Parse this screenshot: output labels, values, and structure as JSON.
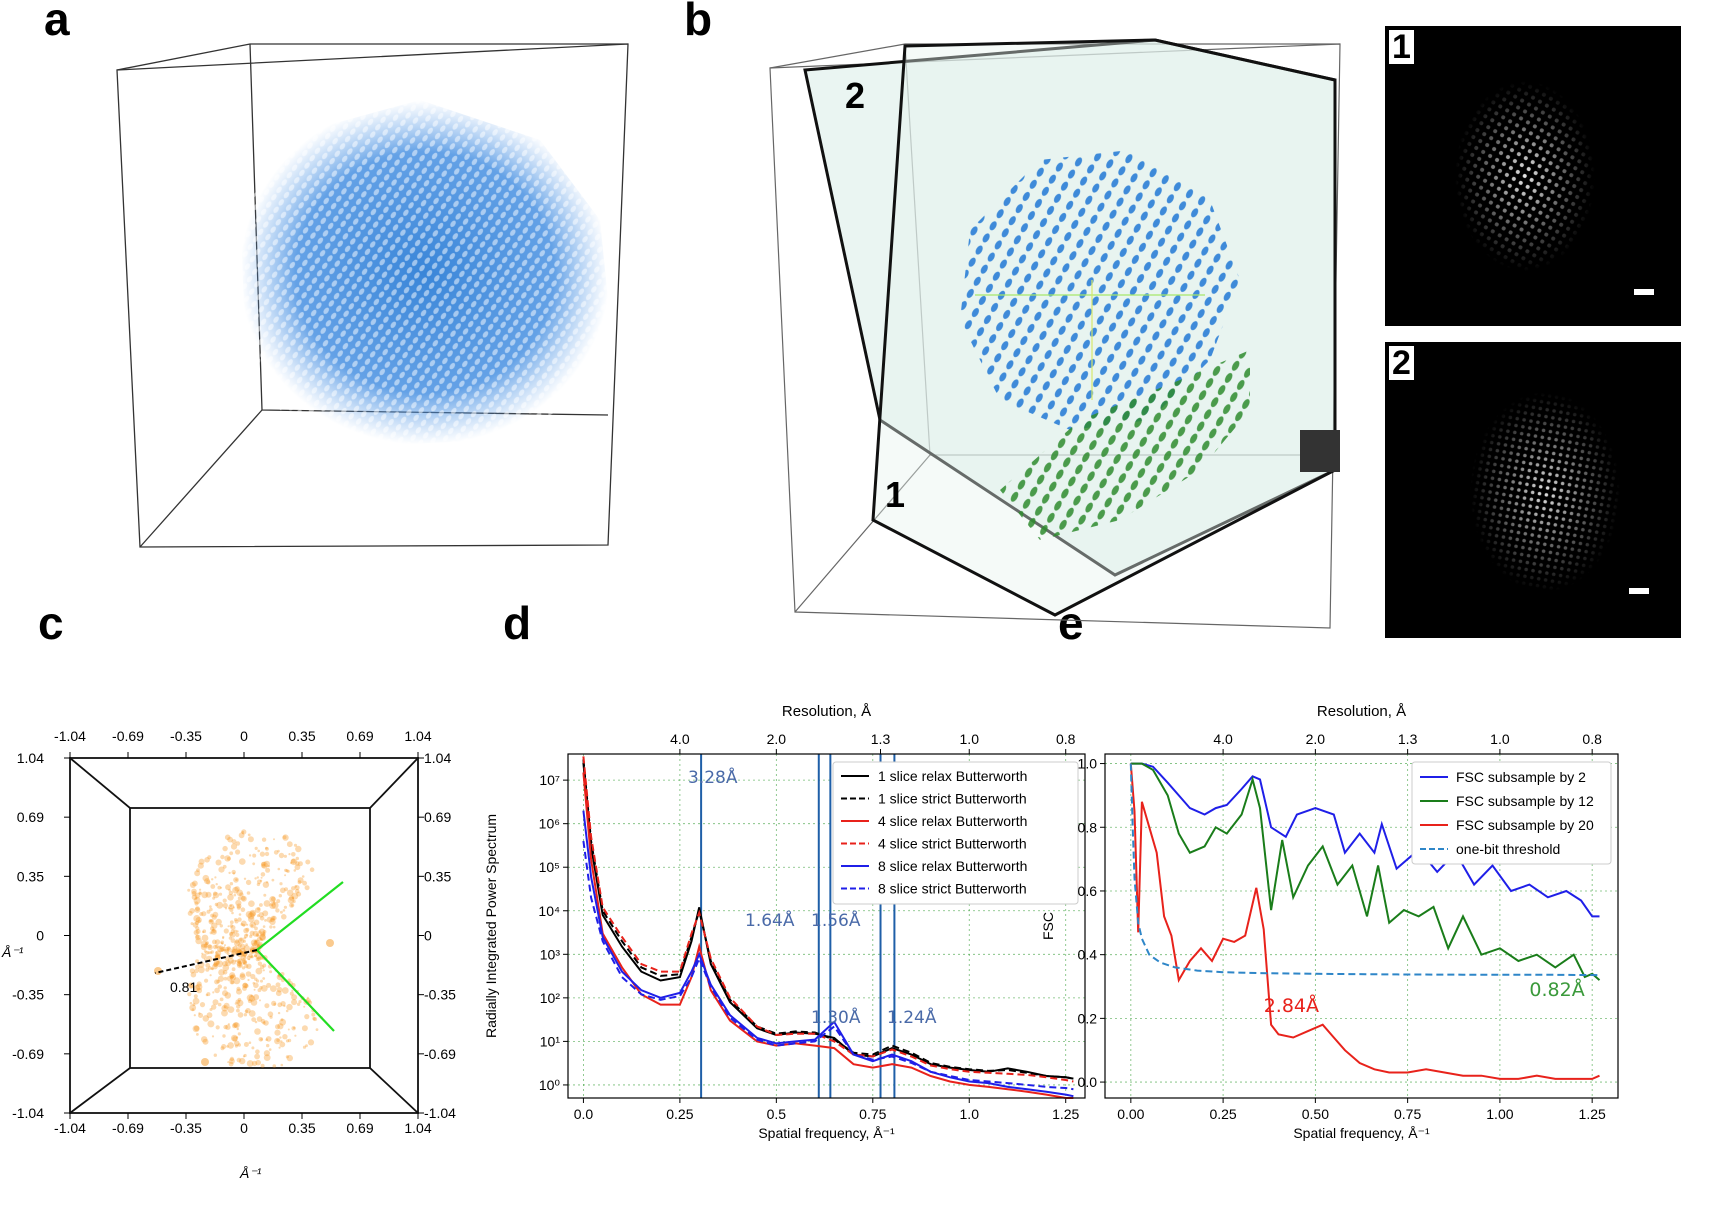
{
  "panels": {
    "a": {
      "letter": "a"
    },
    "b": {
      "letter": "b",
      "plane_labels": [
        "2",
        "1"
      ],
      "insets": [
        {
          "label": "1"
        },
        {
          "label": "2"
        }
      ]
    },
    "c": {
      "letter": "c",
      "ticks": [
        "-1.04",
        "-0.69",
        "-0.35",
        "0",
        "0.35",
        "0.69",
        "1.04"
      ],
      "x_unit": "Å⁻¹",
      "y_unit": "Å⁻¹",
      "annotation": "0.81",
      "colors": {
        "points": "#f5961e",
        "wedge": "#22dd22"
      }
    },
    "d": {
      "letter": "d"
    },
    "e": {
      "letter": "e"
    }
  },
  "chart_data": [
    {
      "id": "d",
      "type": "line",
      "title": "",
      "xlabel": "Spatial frequency, Å⁻¹",
      "ylabel": "Radially Integrated Power Spectrum",
      "top_axis_label": "Resolution, Å",
      "top_ticks": [
        {
          "value": "4.0",
          "x": 0.25
        },
        {
          "value": "2.0",
          "x": 0.5
        },
        {
          "value": "1.3",
          "x": 0.77
        },
        {
          "value": "1.0",
          "x": 1.0
        },
        {
          "value": "0.8",
          "x": 1.25
        }
      ],
      "xlim": [
        -0.04,
        1.3
      ],
      "ylim_log10": [
        -0.3,
        7.6
      ],
      "yscale": "log",
      "xticks": [
        "0.0",
        "0.25",
        "0.5",
        "0.75",
        "1.0",
        "1.25"
      ],
      "yticks": [
        "10⁰",
        "10¹",
        "10²",
        "10³",
        "10⁴",
        "10⁵",
        "10⁶",
        "10⁷"
      ],
      "grid": true,
      "legend_position": "top-right",
      "vlines": [
        {
          "x": 0.305,
          "label": "3.28Å"
        },
        {
          "x": 0.61,
          "label": "1.64Å"
        },
        {
          "x": 0.64,
          "label": "1.56Å"
        },
        {
          "x": 0.77,
          "label": "1.30Å"
        },
        {
          "x": 0.806,
          "label": "1.24Å"
        }
      ],
      "series": [
        {
          "name": "1 slice relax Butterworth",
          "color": "#000000",
          "dash": false,
          "x": [
            0.0,
            0.02,
            0.05,
            0.1,
            0.15,
            0.2,
            0.25,
            0.28,
            0.3,
            0.33,
            0.38,
            0.45,
            0.5,
            0.55,
            0.6,
            0.65,
            0.7,
            0.75,
            0.8,
            0.85,
            0.9,
            0.95,
            1.0,
            1.05,
            1.1,
            1.15,
            1.2,
            1.25,
            1.27
          ],
          "y": [
            25000000.0,
            300000.0,
            8000.0,
            1500.0,
            400.0,
            250.0,
            300.0,
            2000.0,
            12000.0,
            600.0,
            80.0,
            20.0,
            14.0,
            16.0,
            15.0,
            12.0,
            5,
            4.5,
            7,
            5,
            3,
            2.5,
            2.2,
            2,
            2.4,
            2,
            1.6,
            1.5,
            1.4
          ]
        },
        {
          "name": "1 slice strict Butterworth",
          "color": "#000000",
          "dash": true,
          "x": [
            0.0,
            0.02,
            0.05,
            0.1,
            0.15,
            0.2,
            0.25,
            0.28,
            0.3,
            0.33,
            0.38,
            0.45,
            0.5,
            0.55,
            0.6,
            0.65,
            0.7,
            0.75,
            0.8,
            0.85,
            0.9,
            0.95,
            1.0,
            1.05,
            1.1,
            1.15,
            1.2,
            1.25,
            1.27
          ],
          "y": [
            30000000.0,
            400000.0,
            10000.0,
            2000.0,
            500.0,
            320.0,
            350.0,
            2500.0,
            10000.0,
            700.0,
            90.0,
            22.0,
            15.0,
            17.0,
            16.0,
            11.0,
            5.5,
            5,
            8,
            5.5,
            3.2,
            2.6,
            2.3,
            2.1,
            2.2,
            1.9,
            1.6,
            1.5,
            1.4
          ]
        },
        {
          "name": "4 slice relax Butterworth",
          "color": "#e8221b",
          "dash": false,
          "x": [
            0.0,
            0.02,
            0.05,
            0.1,
            0.15,
            0.2,
            0.25,
            0.28,
            0.3,
            0.33,
            0.38,
            0.45,
            0.5,
            0.55,
            0.6,
            0.65,
            0.7,
            0.75,
            0.8,
            0.85,
            0.9,
            0.95,
            1.0,
            1.05,
            1.1,
            1.15,
            1.2,
            1.25,
            1.27
          ],
          "y": [
            15000000.0,
            150000.0,
            3000.0,
            500.0,
            120.0,
            70.0,
            70.0,
            300.0,
            1500.0,
            150.0,
            30.0,
            10.0,
            8,
            9,
            8,
            7,
            3,
            2.5,
            3,
            2.5,
            1.6,
            1.2,
            1,
            0.9,
            0.8,
            0.7,
            0.6,
            0.5,
            0.5
          ]
        },
        {
          "name": "4 slice strict Butterworth",
          "color": "#e8221b",
          "dash": true,
          "x": [
            0.0,
            0.02,
            0.05,
            0.1,
            0.15,
            0.2,
            0.25,
            0.28,
            0.3,
            0.33,
            0.38,
            0.45,
            0.5,
            0.55,
            0.6,
            0.65,
            0.7,
            0.75,
            0.8,
            0.85,
            0.9,
            0.95,
            1.0,
            1.05,
            1.1,
            1.15,
            1.2,
            1.25,
            1.27
          ],
          "y": [
            35000000.0,
            500000.0,
            12000.0,
            2500.0,
            600.0,
            400.0,
            400.0,
            3000.0,
            9000.0,
            800.0,
            100.0,
            22.0,
            14.0,
            15.0,
            15.0,
            10.0,
            5,
            4.5,
            6.5,
            4.5,
            2.8,
            2.3,
            2,
            1.9,
            1.8,
            1.7,
            1.5,
            1.3,
            1.2
          ]
        },
        {
          "name": "8 slice relax Butterworth",
          "color": "#1f1fe8",
          "dash": false,
          "x": [
            0.0,
            0.02,
            0.05,
            0.1,
            0.15,
            0.2,
            0.25,
            0.28,
            0.3,
            0.33,
            0.38,
            0.45,
            0.5,
            0.55,
            0.6,
            0.65,
            0.7,
            0.75,
            0.8,
            0.85,
            0.9,
            0.95,
            1.0,
            1.05,
            1.1,
            1.15,
            1.2,
            1.25,
            1.27
          ],
          "y": [
            2000000.0,
            60000.0,
            2500.0,
            400.0,
            150.0,
            100.0,
            130.0,
            400.0,
            1000.0,
            200.0,
            40.0,
            12.0,
            9,
            10.0,
            11.0,
            28.0,
            5,
            3.5,
            5,
            3.5,
            2,
            1.5,
            1.2,
            1.1,
            0.9,
            0.8,
            0.7,
            0.6,
            0.55
          ]
        },
        {
          "name": "8 slice strict Butterworth",
          "color": "#1f1fe8",
          "dash": true,
          "x": [
            0.0,
            0.02,
            0.05,
            0.1,
            0.15,
            0.2,
            0.25,
            0.28,
            0.3,
            0.33,
            0.38,
            0.45,
            0.5,
            0.55,
            0.6,
            0.65,
            0.7,
            0.75,
            0.8,
            0.85,
            0.9,
            0.95,
            1.0,
            1.05,
            1.1,
            1.15,
            1.2,
            1.25,
            1.27
          ],
          "y": [
            400000.0,
            20000.0,
            2000.0,
            300.0,
            120.0,
            90.0,
            110.0,
            300.0,
            800.0,
            180.0,
            35.0,
            11.0,
            8,
            9,
            10.0,
            22.0,
            5,
            3.8,
            4.5,
            3.2,
            2,
            1.6,
            1.3,
            1.2,
            1.1,
            1,
            0.9,
            0.85,
            0.8
          ]
        }
      ]
    },
    {
      "id": "e",
      "type": "line",
      "title": "",
      "xlabel": "Spatial frequency, Å⁻¹",
      "ylabel": "FSC",
      "top_axis_label": "Resolution, Å",
      "top_ticks": [
        {
          "value": "4.0",
          "x": 0.25
        },
        {
          "value": "2.0",
          "x": 0.5
        },
        {
          "value": "1.3",
          "x": 0.75
        },
        {
          "value": "1.0",
          "x": 1.0
        },
        {
          "value": "0.8",
          "x": 1.25
        }
      ],
      "xlim": [
        -0.07,
        1.32
      ],
      "ylim": [
        -0.05,
        1.03
      ],
      "xticks": [
        "0.00",
        "0.25",
        "0.50",
        "0.75",
        "1.00",
        "1.25"
      ],
      "yticks": [
        "0.0",
        "0.2",
        "0.4",
        "0.6",
        "0.8",
        "1.0"
      ],
      "grid": true,
      "legend_position": "top-right",
      "annotations": [
        {
          "text": "2.84Å",
          "x": 0.36,
          "y": 0.22,
          "color": "#e8221b"
        },
        {
          "text": "0.82Å",
          "x": 1.08,
          "y": 0.27,
          "color": "#3b9a3b"
        }
      ],
      "series": [
        {
          "name": "FSC subsample by 2",
          "color": "#1f1fe8",
          "dash": false,
          "x": [
            0.0,
            0.03,
            0.06,
            0.1,
            0.13,
            0.16,
            0.2,
            0.23,
            0.26,
            0.3,
            0.33,
            0.35,
            0.38,
            0.42,
            0.45,
            0.5,
            0.55,
            0.58,
            0.62,
            0.66,
            0.68,
            0.72,
            0.78,
            0.83,
            0.88,
            0.93,
            0.98,
            1.03,
            1.08,
            1.13,
            1.18,
            1.22,
            1.25,
            1.27
          ],
          "y": [
            1.0,
            1.0,
            0.99,
            0.94,
            0.9,
            0.86,
            0.84,
            0.86,
            0.87,
            0.92,
            0.96,
            0.95,
            0.8,
            0.77,
            0.84,
            0.86,
            0.84,
            0.72,
            0.78,
            0.72,
            0.81,
            0.67,
            0.73,
            0.66,
            0.72,
            0.62,
            0.68,
            0.6,
            0.62,
            0.58,
            0.6,
            0.57,
            0.52,
            0.52
          ]
        },
        {
          "name": "FSC subsample by 12",
          "color": "#1a7d1a",
          "dash": false,
          "x": [
            0.0,
            0.03,
            0.06,
            0.1,
            0.13,
            0.16,
            0.2,
            0.23,
            0.26,
            0.3,
            0.33,
            0.35,
            0.38,
            0.41,
            0.44,
            0.48,
            0.52,
            0.56,
            0.6,
            0.64,
            0.67,
            0.7,
            0.74,
            0.78,
            0.82,
            0.86,
            0.9,
            0.95,
            1.0,
            1.05,
            1.1,
            1.15,
            1.2,
            1.23,
            1.25,
            1.27
          ],
          "y": [
            1.0,
            1.0,
            0.98,
            0.9,
            0.78,
            0.72,
            0.74,
            0.8,
            0.78,
            0.84,
            0.95,
            0.86,
            0.54,
            0.76,
            0.58,
            0.68,
            0.74,
            0.62,
            0.68,
            0.52,
            0.68,
            0.5,
            0.54,
            0.52,
            0.55,
            0.42,
            0.52,
            0.4,
            0.42,
            0.38,
            0.4,
            0.36,
            0.4,
            0.33,
            0.34,
            0.32
          ]
        },
        {
          "name": "FSC subsample by 20",
          "color": "#e8221b",
          "dash": false,
          "x": [
            0.0,
            0.01,
            0.02,
            0.03,
            0.05,
            0.07,
            0.09,
            0.11,
            0.13,
            0.16,
            0.19,
            0.22,
            0.25,
            0.28,
            0.31,
            0.34,
            0.36,
            0.38,
            0.4,
            0.44,
            0.48,
            0.52,
            0.55,
            0.58,
            0.62,
            0.66,
            0.7,
            0.75,
            0.8,
            0.85,
            0.9,
            0.95,
            1.0,
            1.05,
            1.1,
            1.15,
            1.2,
            1.25,
            1.27
          ],
          "y": [
            1.0,
            0.85,
            0.47,
            0.88,
            0.8,
            0.72,
            0.52,
            0.46,
            0.32,
            0.38,
            0.42,
            0.38,
            0.45,
            0.44,
            0.46,
            0.61,
            0.48,
            0.18,
            0.15,
            0.14,
            0.16,
            0.18,
            0.14,
            0.1,
            0.06,
            0.04,
            0.03,
            0.03,
            0.04,
            0.03,
            0.02,
            0.02,
            0.01,
            0.01,
            0.02,
            0.01,
            0.01,
            0.01,
            0.02
          ]
        },
        {
          "name": "one-bit threshold",
          "color": "#2e86c8",
          "dash": true,
          "x": [
            0.0,
            0.005,
            0.01,
            0.02,
            0.03,
            0.05,
            0.08,
            0.12,
            0.18,
            0.25,
            0.35,
            0.5,
            0.7,
            0.9,
            1.1,
            1.27
          ],
          "y": [
            1.0,
            0.8,
            0.64,
            0.5,
            0.45,
            0.4,
            0.375,
            0.36,
            0.35,
            0.345,
            0.342,
            0.34,
            0.338,
            0.337,
            0.337,
            0.336
          ]
        }
      ]
    }
  ]
}
